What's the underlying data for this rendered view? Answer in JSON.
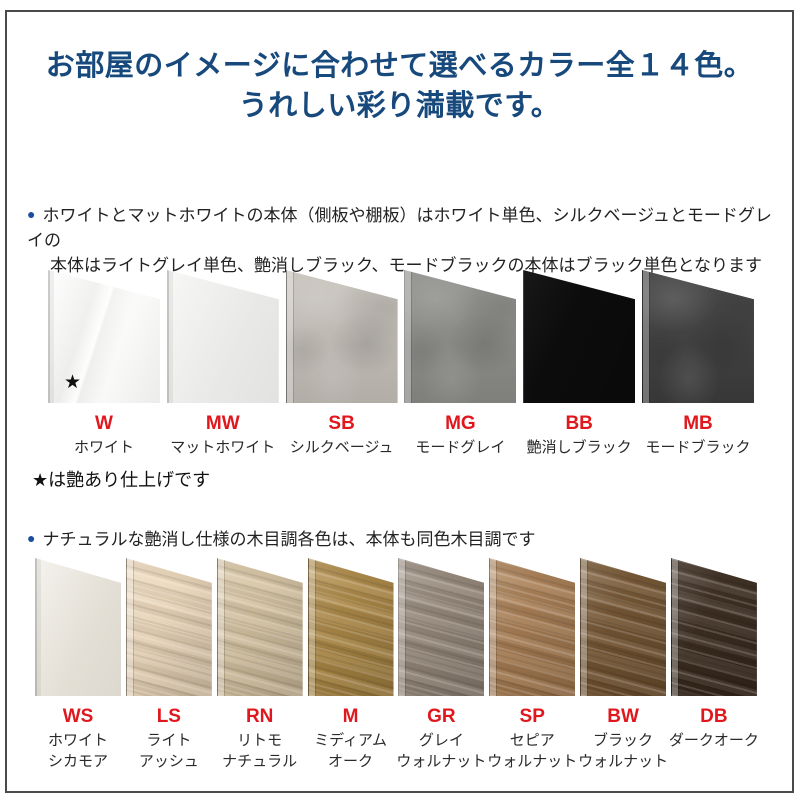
{
  "header": {
    "line1": "お部屋のイメージに合わせて選べるカラー全１４色。",
    "line2": "うれしい彩り満載です。"
  },
  "colors": {
    "header_text": "#17497c",
    "bullet_blue": "#1b4f9e",
    "code_red": "#e0181e",
    "body_text": "#222222",
    "frame_border": "#4a4a4a"
  },
  "section1": {
    "bullet": "●",
    "line1": "ホワイトとマットホワイトの本体（側板や棚板）はホワイト単色、シルクベージュとモードグレイの",
    "line2": "本体はライトグレイ単色、艶消しブラック、モードブラックの本体はブラック単色となります"
  },
  "section2": {
    "bullet": "●",
    "text": "ナチュラルな艶消し仕様の木目調各色は、本体も同色木目調です"
  },
  "gloss_star": "★",
  "note": "★は艶あり仕上げです",
  "rows": {
    "row1": {
      "items": [
        {
          "code": "W",
          "name": "ホワイト",
          "hex": "#f6f6f4",
          "finish": "gloss"
        },
        {
          "code": "MW",
          "name": "マットホワイト",
          "hex": "#f0f0ee",
          "finish": "matte"
        },
        {
          "code": "SB",
          "name": "シルクベージュ",
          "hex": "#c6c1ba",
          "finish": "matte"
        },
        {
          "code": "MG",
          "name": "モードグレイ",
          "hex": "#8d8d8a",
          "finish": "matte"
        },
        {
          "code": "BB",
          "name": "艶消しブラック",
          "hex": "#0c0c0c",
          "finish": "matte"
        },
        {
          "code": "MB",
          "name": "モードブラック",
          "hex": "#3d3d3d",
          "finish": "matte"
        }
      ]
    },
    "row2": {
      "items": [
        {
          "code": "WS",
          "name": "ホワイト\nシカモア",
          "hex": "#eae6dc"
        },
        {
          "code": "LS",
          "name": "ライト\nアッシュ",
          "hex": "#eed9bb"
        },
        {
          "code": "RN",
          "name": "リトモ\nナチュラル",
          "hex": "#d8c5a3"
        },
        {
          "code": "M",
          "name": "ミディアム\nオーク",
          "hex": "#ad8844"
        },
        {
          "code": "GR",
          "name": "グレイ\nウォルナット",
          "hex": "#96887a"
        },
        {
          "code": "SP",
          "name": "セピア\nウォルナット",
          "hex": "#aa7e53"
        },
        {
          "code": "BW",
          "name": "ブラック\nウォルナット",
          "hex": "#745430"
        },
        {
          "code": "DB",
          "name": "ダークオーク",
          "hex": "#3a2a1d"
        }
      ]
    }
  }
}
